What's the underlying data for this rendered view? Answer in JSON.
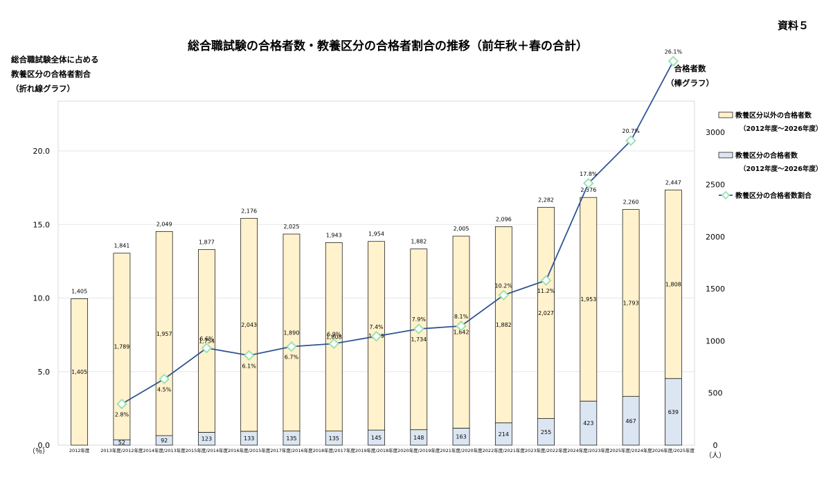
{
  "doc_label": "資料５",
  "chart_data": {
    "type": "bar",
    "title": "総合職試験の合格者数・教養区分の合格者割合の推移（前年秋＋春の合計）",
    "categories": [
      "2012年度",
      "2013年度/2012年度",
      "2014年度/2013年度",
      "2015年度/2014年度",
      "2016年度/2015年度",
      "2017年度/2016年度",
      "2018年度/2017年度",
      "2019年度/2018年度",
      "2020年度/2019年度",
      "2021年度/2020年度",
      "2022年度/2021年度",
      "2023年度/2022年度",
      "2024年度/2023年度",
      "2025年度/2024年度",
      "2026年度/2025年度"
    ],
    "left_axis": {
      "label_lines": [
        "総合職試験全体に占める",
        "教養区分の合格者割合",
        "（折れ線グラフ）"
      ],
      "unit": "（％）",
      "ticks": [
        0,
        5,
        10,
        15,
        20
      ],
      "tick_labels": [
        "0.0",
        "5.0",
        "10.0",
        "15.0",
        "20.0"
      ]
    },
    "right_axis": {
      "label_lines": [
        "合格者数",
        "（棒グラフ）"
      ],
      "unit": "（人）",
      "ticks": [
        0,
        500,
        1000,
        1500,
        2000,
        2500,
        3000
      ]
    },
    "series": [
      {
        "name": "教養区分以外の合格者数",
        "period": "（2012年度～2026年度）",
        "color": "#fff2cc",
        "values": [
          1405,
          1789,
          1957,
          1754,
          2043,
          1890,
          1808,
          1809,
          1734,
          1842,
          1882,
          2027,
          1953,
          1793,
          1808
        ],
        "labels": [
          "1,405",
          "1,789",
          "1,957",
          "1,754",
          "2,043",
          "1,890",
          "1,808",
          "1,809",
          "1,734",
          "1,842",
          "1,882",
          "2,027",
          "1,953",
          "1,793",
          "1,808"
        ]
      },
      {
        "name": "教養区分の合格者数",
        "period": "（2012年度～2026年度）",
        "color": "#dce6f2",
        "values": [
          0,
          52,
          92,
          123,
          133,
          135,
          135,
          145,
          148,
          163,
          214,
          255,
          423,
          467,
          639
        ],
        "labels": [
          "",
          "52",
          "92",
          "123",
          "133",
          "135",
          "135",
          "145",
          "148",
          "163",
          "214",
          "255",
          "423",
          "467",
          "639"
        ]
      },
      {
        "name": "教養区分の合格者数割合",
        "type": "line",
        "color": "#2e5395",
        "marker_color": "#9be2b4",
        "values": [
          null,
          2.8,
          4.5,
          6.6,
          6.1,
          6.7,
          6.9,
          7.4,
          7.9,
          8.1,
          10.2,
          11.2,
          17.8,
          20.7,
          26.1
        ],
        "labels": [
          "",
          "2.8%",
          "4.5%",
          "6.6%",
          "6.1%",
          "6.7%",
          "6.9%",
          "7.4%",
          "7.9%",
          "8.1%",
          "10.2%",
          "11.2%",
          "17.8%",
          "20.7%",
          "26.1%"
        ]
      }
    ],
    "totals": {
      "values": [
        1405,
        1841,
        2049,
        1877,
        2176,
        2025,
        1943,
        1954,
        1882,
        2005,
        2096,
        2282,
        2376,
        2260,
        2447
      ],
      "labels": [
        "1,405",
        "1,841",
        "2,049",
        "1,877",
        "2,176",
        "2,025",
        "1,943",
        "1,954",
        "1,882",
        "2,005",
        "2,096",
        "2,282",
        "2,376",
        "2,260",
        "2,447"
      ]
    },
    "grid": true,
    "legend_position": "right"
  }
}
